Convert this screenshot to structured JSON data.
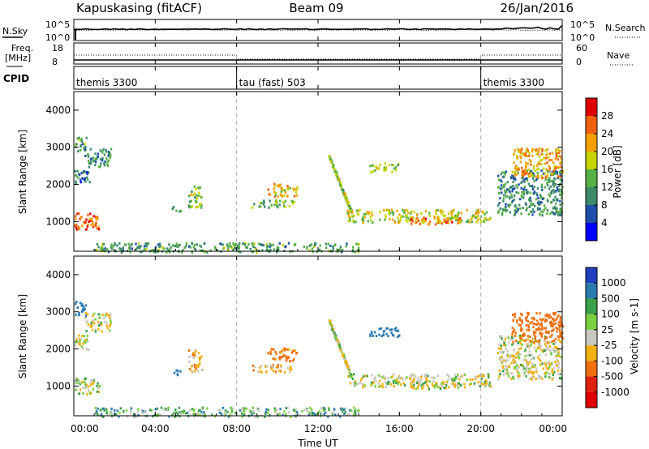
{
  "header": {
    "station": "Kapuskasing (fitACF)",
    "beam": "Beam 09",
    "date": "26/Jan/2016"
  },
  "sky_panel": {
    "left_label": "N.Sky",
    "right_label": "N.Search",
    "left_ticks": [
      "10^5",
      "10^0"
    ],
    "right_ticks": [
      "10^5",
      "10^0"
    ]
  },
  "freq_panel": {
    "left_label_top": "Freq.",
    "left_label_unit": "[MHz]",
    "right_label": "Nave",
    "left_ticks": [
      "18",
      "8"
    ],
    "right_ticks": [
      "60",
      "0"
    ]
  },
  "cpid_panel": {
    "label": "CPID",
    "segments": [
      {
        "name": "themis 3300",
        "start": 0,
        "end": 8
      },
      {
        "name": "tau (fast) 503",
        "start": 8,
        "end": 20
      },
      {
        "name": "themis 3300",
        "start": 20,
        "end": 24
      }
    ]
  },
  "time_axis": {
    "xlabel": "Time UT",
    "ticks": [
      "00:00",
      "04:00",
      "08:00",
      "12:00",
      "16:00",
      "20:00",
      "00:00"
    ],
    "range_hours": [
      0,
      24
    ]
  },
  "power_panel": {
    "ylabel": "Slant Range [km]",
    "yticks": [
      "1000",
      "2000",
      "3000",
      "4000"
    ],
    "colorbar_label": "Power [dB]",
    "colorbar_ticks": [
      "4",
      "8",
      "12",
      "16",
      "20",
      "24",
      "28"
    ],
    "colors": [
      "#0000ff",
      "#1f4fa8",
      "#3c8a6a",
      "#55b045",
      "#c8d400",
      "#f4a000",
      "#f06010",
      "#e00000"
    ]
  },
  "velocity_panel": {
    "ylabel": "Slant Range [km]",
    "yticks": [
      "1000",
      "2000",
      "3000",
      "4000"
    ],
    "colorbar_label": "Velocity [m s-1]",
    "colorbar_ticks": [
      "1000",
      "500",
      "100",
      "25",
      "-25",
      "-100",
      "-500",
      "-1000"
    ],
    "colors": [
      "#2040c0",
      "#2a7ab0",
      "#3aa04a",
      "#7ad040",
      "#c8c8c0",
      "#f0b010",
      "#f07010",
      "#e02010",
      "#e00000"
    ]
  },
  "chart_data": {
    "type": "heatmap",
    "x_range_hours": [
      0,
      24
    ],
    "y_range_km": [
      200,
      4500
    ],
    "scatter_regions": [
      {
        "t0": 0.0,
        "t1": 1.3,
        "r0": 800,
        "r1": 1250,
        "power": 26,
        "velocity": 0
      },
      {
        "t0": 0.0,
        "t1": 0.6,
        "r0": 2900,
        "r1": 3300,
        "power": 12,
        "velocity": 300
      },
      {
        "t0": 0.5,
        "t1": 1.8,
        "r0": 2500,
        "r1": 3000,
        "power": 10,
        "velocity": 0
      },
      {
        "t0": 0.0,
        "t1": 0.8,
        "r0": 2000,
        "r1": 2400,
        "power": 8,
        "velocity": 0
      },
      {
        "t0": 4.8,
        "t1": 5.3,
        "r0": 1300,
        "r1": 1450,
        "power": 14,
        "velocity": 200
      },
      {
        "t0": 5.6,
        "t1": 6.3,
        "r0": 1400,
        "r1": 2000,
        "power": 16,
        "velocity": -60
      },
      {
        "t0": 8.7,
        "t1": 10.8,
        "r0": 1400,
        "r1": 1600,
        "power": 14,
        "velocity": -60
      },
      {
        "t0": 9.5,
        "t1": 11.0,
        "r0": 1700,
        "r1": 2050,
        "power": 20,
        "velocity": -150
      },
      {
        "t0": 13.4,
        "t1": 20.5,
        "r0": 1000,
        "r1": 1350,
        "power": 18,
        "velocity": 0
      },
      {
        "t0": 16.5,
        "t1": 19.0,
        "r0": 950,
        "r1": 1150,
        "power": 24,
        "velocity": 0
      },
      {
        "t0": 14.5,
        "t1": 16.0,
        "r0": 2350,
        "r1": 2600,
        "power": 16,
        "velocity": 200
      },
      {
        "t0": 20.8,
        "t1": 24.0,
        "r0": 1200,
        "r1": 2400,
        "power": 10,
        "velocity": 0
      },
      {
        "t0": 21.5,
        "t1": 24.0,
        "r0": 2200,
        "r1": 3000,
        "power": 22,
        "velocity": -200
      },
      {
        "t0": 1.0,
        "t1": 14.0,
        "r0": 200,
        "r1": 450,
        "power": 12,
        "velocity": 50
      }
    ],
    "diagonal_streak": {
      "t0": 12.5,
      "t1": 13.6,
      "r0": 2800,
      "r1": 1300,
      "power": 16,
      "velocity": 0
    },
    "mode_changes_hours": [
      8,
      20
    ]
  }
}
